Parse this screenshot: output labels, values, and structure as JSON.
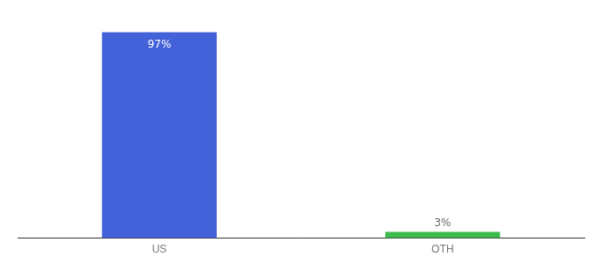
{
  "chart_data": {
    "type": "bar",
    "categories": [
      "US",
      "OTH"
    ],
    "values": [
      97,
      3
    ],
    "value_labels": [
      "97%",
      "3%"
    ],
    "colors": [
      "#4361d8",
      "#3dba4e"
    ],
    "ylim": [
      0,
      108
    ],
    "grid": false,
    "data_labels": true,
    "tick_labels": "x"
  }
}
